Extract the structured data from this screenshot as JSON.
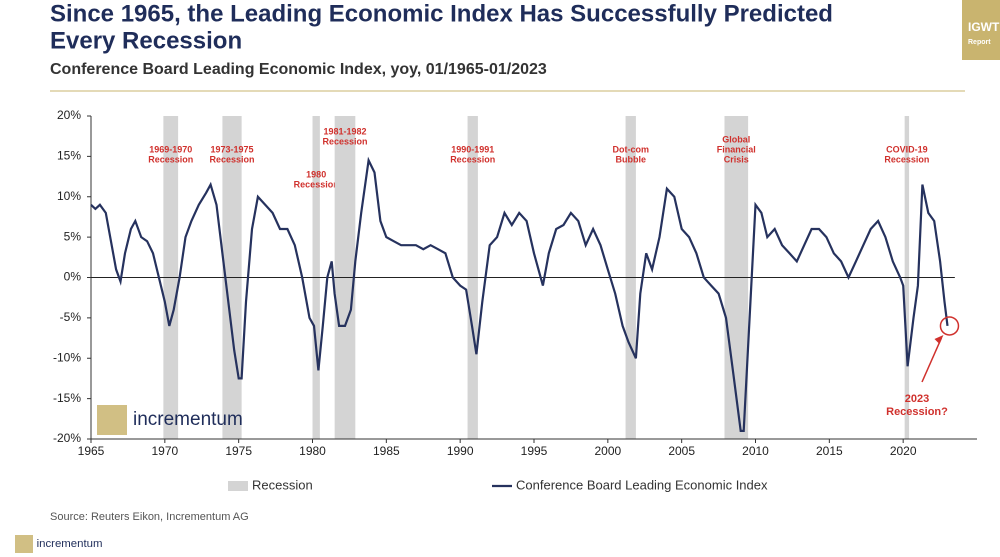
{
  "chart_data": {
    "type": "line",
    "title": [
      "Since 1965, the Leading Economic Index Has Successfully Predicted",
      "Every Recession"
    ],
    "subtitle": "Conference Board Leading Economic Index, yoy, 01/1965-01/2023",
    "brand": [
      "IGWT",
      "Report"
    ],
    "logo": "incrementum",
    "source": "Source: Reuters Eikon, Incrementum AG",
    "annotation": [
      "2023",
      "Recession?"
    ],
    "xlim": [
      1965,
      2025
    ],
    "xticks": [
      1965,
      1970,
      1975,
      1980,
      1985,
      1990,
      1995,
      2000,
      2005,
      2010,
      2015,
      2020
    ],
    "ylim": [
      -20,
      20
    ],
    "yticks": [
      {
        "value": -20,
        "label": "-20%"
      },
      {
        "value": -15,
        "label": "-15%"
      },
      {
        "value": -10,
        "label": "-10%"
      },
      {
        "value": -5,
        "label": "-5%"
      },
      {
        "value": 0,
        "label": "0%"
      },
      {
        "value": 5,
        "label": "5%"
      },
      {
        "value": 10,
        "label": "10%"
      },
      {
        "value": 15,
        "label": "15%"
      },
      {
        "value": 20,
        "label": "20%"
      }
    ],
    "recession_name": "Recession",
    "recession_color": "#d4d4d4",
    "recessions": [
      {
        "start": 1969.9,
        "end": 1970.9,
        "label": [
          "1969-1970",
          "Recession"
        ]
      },
      {
        "start": 1973.9,
        "end": 1975.2,
        "label": [
          "1973-1975",
          "Recession"
        ]
      },
      {
        "start": 1980.0,
        "end": 1980.5,
        "label": [
          "1980",
          "Recession"
        ]
      },
      {
        "start": 1981.5,
        "end": 1982.9,
        "label": [
          "1981-1982",
          "Recession"
        ]
      },
      {
        "start": 1990.5,
        "end": 1991.2,
        "label": [
          "1990-1991",
          "Recession"
        ]
      },
      {
        "start": 2001.2,
        "end": 2001.9,
        "label": [
          "Dot-com",
          "Bubble"
        ]
      },
      {
        "start": 2007.9,
        "end": 2009.5,
        "label": [
          "Global",
          "Financial",
          "Crisis"
        ]
      },
      {
        "start": 2020.1,
        "end": 2020.4,
        "label": [
          "COVID-19",
          "Recession"
        ]
      }
    ],
    "series": [
      {
        "name": "Conference Board Leading Economic Index",
        "color": "#26325e",
        "x": [
          1965.0,
          1965.3,
          1965.6,
          1966.0,
          1966.3,
          1966.7,
          1967.0,
          1967.3,
          1967.7,
          1968.0,
          1968.4,
          1968.8,
          1969.2,
          1969.6,
          1970.0,
          1970.3,
          1970.6,
          1971.0,
          1971.4,
          1971.8,
          1972.3,
          1972.8,
          1973.1,
          1973.5,
          1973.9,
          1974.3,
          1974.7,
          1975.0,
          1975.2,
          1975.5,
          1975.9,
          1976.3,
          1976.8,
          1977.3,
          1977.8,
          1978.3,
          1978.8,
          1979.3,
          1979.8,
          1980.1,
          1980.4,
          1980.7,
          1981.0,
          1981.3,
          1981.5,
          1981.8,
          1982.2,
          1982.6,
          1982.9,
          1983.3,
          1983.8,
          1984.2,
          1984.6,
          1985.0,
          1985.5,
          1986.0,
          1986.5,
          1987.0,
          1987.5,
          1988.0,
          1988.5,
          1989.0,
          1989.5,
          1990.0,
          1990.4,
          1990.8,
          1991.1,
          1991.5,
          1992.0,
          1992.5,
          1993.0,
          1993.5,
          1994.0,
          1994.5,
          1995.0,
          1995.6,
          1996.0,
          1996.5,
          1997.0,
          1997.5,
          1998.0,
          1998.5,
          1999.0,
          1999.5,
          2000.0,
          2000.5,
          2001.0,
          2001.4,
          2001.9,
          2002.2,
          2002.6,
          2003.0,
          2003.5,
          2004.0,
          2004.5,
          2005.0,
          2005.5,
          2006.0,
          2006.5,
          2007.0,
          2007.5,
          2008.0,
          2008.5,
          2009.0,
          2009.2,
          2009.6,
          2010.0,
          2010.4,
          2010.8,
          2011.3,
          2011.8,
          2012.3,
          2012.8,
          2013.3,
          2013.8,
          2014.3,
          2014.8,
          2015.3,
          2015.8,
          2016.3,
          2016.8,
          2017.3,
          2017.8,
          2018.3,
          2018.8,
          2019.3,
          2019.8,
          2020.0,
          2020.3,
          2020.7,
          2021.0,
          2021.3,
          2021.7,
          2022.1,
          2022.5,
          2022.8,
          2023.0
        ],
        "values": [
          9,
          8.5,
          9,
          8,
          5,
          1,
          -0.5,
          3,
          6,
          7,
          5,
          4.5,
          3,
          0,
          -3,
          -6,
          -4,
          0,
          5,
          7,
          9,
          10.5,
          11.5,
          9,
          3,
          -3,
          -9,
          -12.5,
          -12.5,
          -3,
          6,
          10,
          9,
          8,
          6,
          6,
          4,
          0,
          -5,
          -6,
          -11.5,
          -6,
          0,
          2,
          -2,
          -6,
          -6,
          -4,
          2,
          8,
          14.5,
          13,
          7,
          5,
          4.5,
          4,
          4,
          4,
          3.5,
          4,
          3.5,
          3,
          0,
          -1,
          -1.5,
          -6,
          -9.5,
          -3,
          4,
          5,
          8,
          6.5,
          8,
          7,
          3,
          -1,
          3,
          6,
          6.5,
          8,
          7,
          4,
          6,
          4,
          1,
          -2,
          -6,
          -8,
          -10,
          -2,
          3,
          1,
          5,
          11,
          10,
          6,
          5,
          3,
          0,
          -1,
          -2,
          -5,
          -12,
          -19,
          -19,
          -5,
          9,
          8,
          5,
          6,
          4,
          3,
          2,
          4,
          6,
          6,
          5,
          3,
          2,
          0,
          2,
          4,
          6,
          7,
          5,
          2,
          0,
          -1,
          -11,
          -5,
          -1,
          11.5,
          8,
          7,
          2,
          -3,
          -6
        ]
      }
    ],
    "annotation_color": "#d0312d",
    "gold": "#c9b46f"
  }
}
